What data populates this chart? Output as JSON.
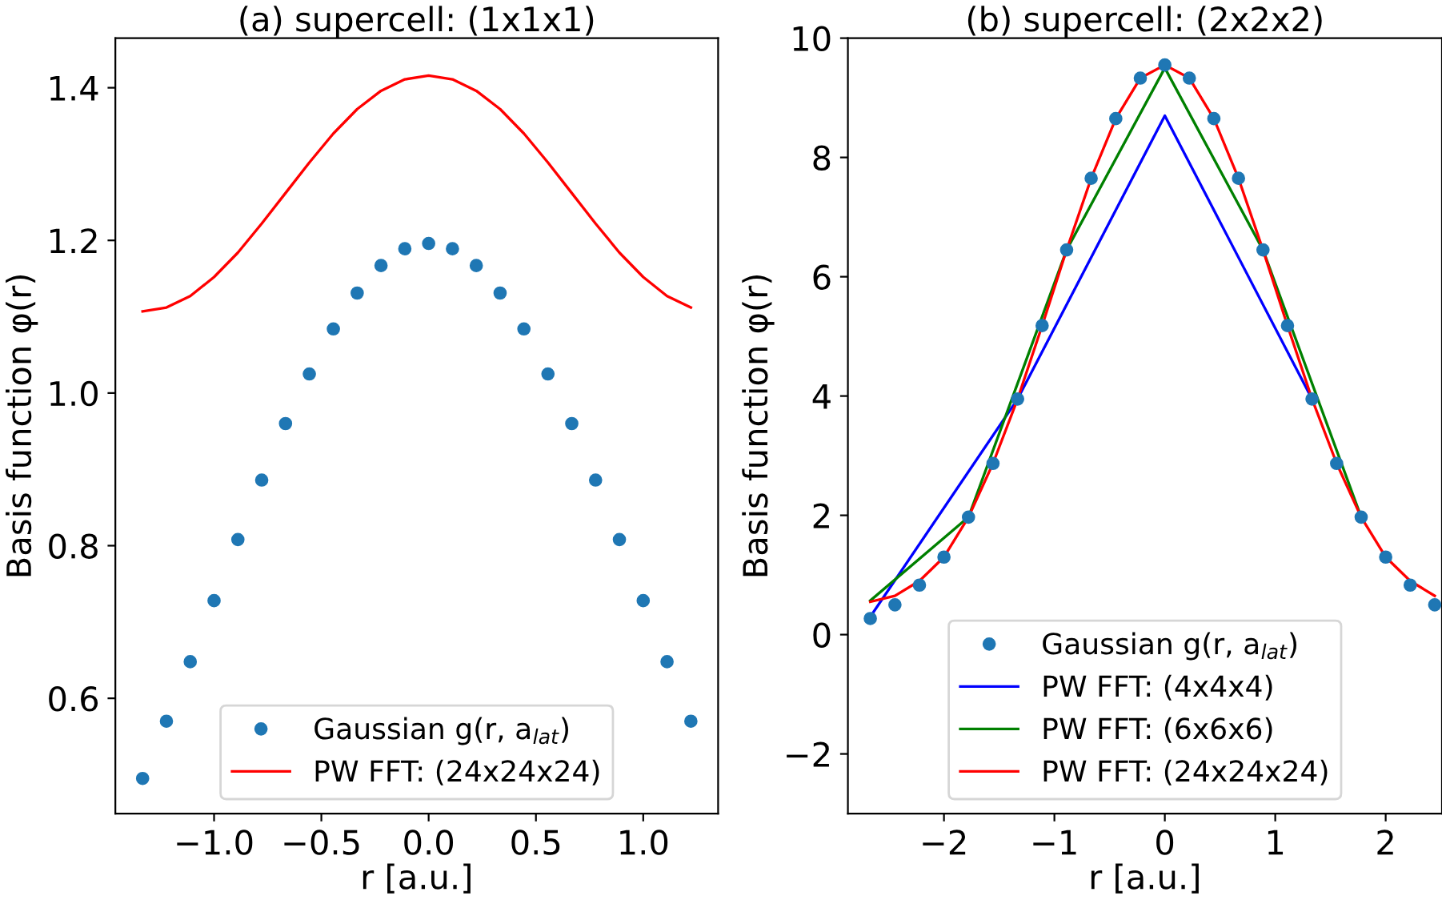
{
  "chart_data": [
    {
      "type": "line",
      "title": "(a) supercell: (1x1x1)",
      "xlabel": "r [a.u.]",
      "ylabel": "Basis function φ(r)",
      "xlim": [
        -1.46,
        1.349
      ],
      "ylim": [
        0.449,
        1.465
      ],
      "xticks": [
        {
          "value": -1.0,
          "label": "−1.0"
        },
        {
          "value": -0.5,
          "label": "−0.5"
        },
        {
          "value": 0,
          "label": "0.0"
        },
        0.5,
        {
          "value": 1,
          "label": "1.0"
        }
      ],
      "yticks": [
        0.6,
        0.8,
        {
          "value": 1,
          "label": "1.0"
        },
        1.2,
        1.4
      ],
      "grid": false,
      "legend": "bottom",
      "series": [
        {
          "type": "scatter",
          "name": "Gaussian g(r, a$_{lat}$)",
          "color": "#1f77b4",
          "marker": "circle",
          "x": [
            -1.333,
            -1.222,
            -1.111,
            -1.0,
            -0.889,
            -0.778,
            -0.667,
            -0.556,
            -0.444,
            -0.333,
            -0.222,
            -0.111,
            0.0,
            0.111,
            0.222,
            0.333,
            0.444,
            0.556,
            0.667,
            0.778,
            0.889,
            1.0,
            1.111,
            1.222
          ],
          "values": [
            0.495,
            0.57,
            0.648,
            0.728,
            0.808,
            0.886,
            0.96,
            1.025,
            1.084,
            1.131,
            1.167,
            1.189,
            1.196,
            1.189,
            1.167,
            1.131,
            1.084,
            1.025,
            0.96,
            0.886,
            0.808,
            0.728,
            0.648,
            0.57
          ]
        },
        {
          "type": "line",
          "name": "PW FFT: (24x24x24)",
          "color": "#ff0000",
          "x": [
            -1.333,
            -1.222,
            -1.111,
            -1.0,
            -0.889,
            -0.778,
            -0.667,
            -0.556,
            -0.444,
            -0.333,
            -0.222,
            -0.111,
            0.0,
            0.111,
            0.222,
            0.333,
            0.444,
            0.556,
            0.667,
            0.778,
            0.889,
            1.0,
            1.111,
            1.222
          ],
          "values": [
            1.107,
            1.112,
            1.127,
            1.152,
            1.184,
            1.222,
            1.262,
            1.302,
            1.34,
            1.372,
            1.396,
            1.411,
            1.416,
            1.411,
            1.396,
            1.372,
            1.34,
            1.302,
            1.262,
            1.222,
            1.184,
            1.152,
            1.127,
            1.112
          ]
        }
      ]
    },
    {
      "type": "line",
      "title": "(b) supercell: (2x2x2)",
      "xlabel": "r [a.u.]",
      "ylabel": "Basis function φ(r)",
      "xlim": [
        -2.87,
        2.51
      ],
      "ylim": [
        -3,
        10
      ],
      "xticks": [
        {
          "value": -2,
          "label": "−2"
        },
        {
          "value": -1,
          "label": "−1"
        },
        0,
        1,
        2
      ],
      "yticks": [
        {
          "value": -2,
          "label": "−2"
        },
        0,
        2,
        4,
        6,
        8,
        10
      ],
      "grid": false,
      "legend": "bottom",
      "series": [
        {
          "type": "scatter",
          "name": "Gaussian g(r, a$_{lat}$)",
          "color": "#1f77b4",
          "marker": "circle",
          "x": [
            -2.667,
            -2.444,
            -2.222,
            -2.0,
            -1.778,
            -1.556,
            -1.333,
            -1.111,
            -0.889,
            -0.667,
            -0.444,
            -0.222,
            0.0,
            0.222,
            0.444,
            0.667,
            0.889,
            1.111,
            1.333,
            1.556,
            1.778,
            2.0,
            2.222,
            2.444
          ],
          "values": [
            0.27,
            0.5,
            0.83,
            1.3,
            1.97,
            2.87,
            3.95,
            5.18,
            6.45,
            7.65,
            8.65,
            9.33,
            9.55,
            9.33,
            8.65,
            7.65,
            6.45,
            5.18,
            3.95,
            2.87,
            1.97,
            1.3,
            0.83,
            0.5
          ]
        },
        {
          "type": "line",
          "name": "PW FFT: (4x4x4)",
          "color": "#0000ff",
          "x": [
            -2.667,
            -1.333,
            0.0,
            1.333
          ],
          "values": [
            0.3,
            3.95,
            8.7,
            3.95
          ]
        },
        {
          "type": "line",
          "name": "PW FFT: (6x6x6)",
          "color": "#008000",
          "x": [
            -2.667,
            -1.778,
            -0.889,
            0.0,
            0.889,
            1.778
          ],
          "values": [
            0.57,
            1.97,
            6.45,
            9.5,
            6.45,
            1.97
          ]
        },
        {
          "type": "line",
          "name": "PW FFT: (24x24x24)",
          "color": "#ff0000",
          "x": [
            -2.667,
            -2.444,
            -2.222,
            -2.0,
            -1.778,
            -1.556,
            -1.333,
            -1.111,
            -0.889,
            -0.667,
            -0.444,
            -0.222,
            0.0,
            0.222,
            0.444,
            0.667,
            0.889,
            1.111,
            1.333,
            1.556,
            1.778,
            2.0,
            2.222,
            2.444
          ],
          "values": [
            0.55,
            0.65,
            0.9,
            1.3,
            1.97,
            2.87,
            3.95,
            5.18,
            6.45,
            7.65,
            8.65,
            9.33,
            9.55,
            9.33,
            8.65,
            7.65,
            6.45,
            5.18,
            3.95,
            2.87,
            1.97,
            1.3,
            0.9,
            0.65
          ]
        }
      ]
    }
  ]
}
